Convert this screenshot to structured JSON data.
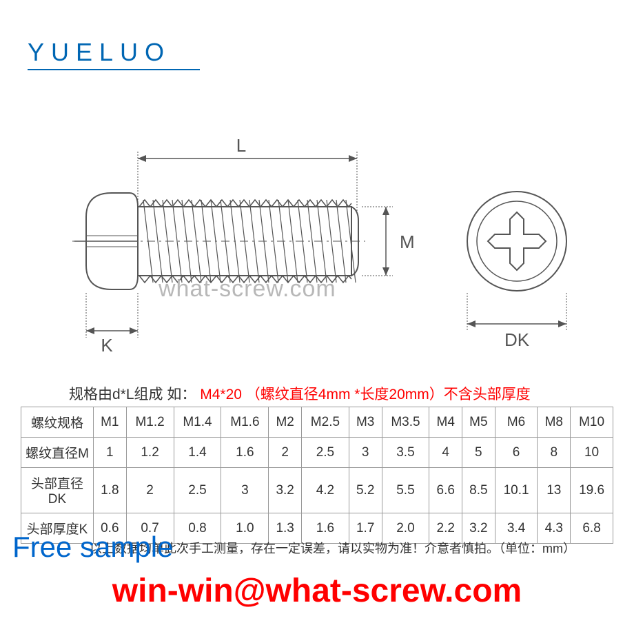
{
  "logo": "YUELUO",
  "watermark": "what-screw.com",
  "diagram": {
    "labels": {
      "L": "L",
      "M": "M",
      "K": "K",
      "DK": "DK"
    },
    "colors": {
      "line": "#555555",
      "thread": "#555555",
      "background": "#ffffff"
    }
  },
  "spec_line": {
    "part1": "规格由d*L组成",
    "gap": "   ",
    "part2": "如：",
    "red1": "M4*20",
    "gap2": "    ",
    "red2": "（螺纹直径4mm *长度20mm）不含头部厚度"
  },
  "table": {
    "rows": [
      [
        "螺纹规格",
        "M1",
        "M1.2",
        "M1.4",
        "M1.6",
        "M2",
        "M2.5",
        "M3",
        "M3.5",
        "M4",
        "M5",
        "M6",
        "M8",
        "M10"
      ],
      [
        "螺纹直径M",
        "1",
        "1.2",
        "1.4",
        "1.6",
        "2",
        "2.5",
        "3",
        "3.5",
        "4",
        "5",
        "6",
        "8",
        "10"
      ],
      [
        "头部直径DK",
        "1.8",
        "2",
        "2.5",
        "3",
        "3.2",
        "4.2",
        "5.2",
        "5.5",
        "6.6",
        "8.5",
        "10.1",
        "13",
        "19.6"
      ],
      [
        "头部厚度K",
        "0.6",
        "0.7",
        "0.8",
        "1.0",
        "1.3",
        "1.6",
        "1.7",
        "2.0",
        "2.2",
        "3.2",
        "3.4",
        "4.3",
        "6.8"
      ]
    ]
  },
  "footnote": "以上数据均单此次手工测量，存在一定误差，请以实物为准！介意者慎拍。（单位：mm）",
  "free_sample": "Free sample",
  "email": "win-win@what-screw.com",
  "colors": {
    "logo": "#0066b3",
    "red": "#ff0000",
    "blue_overlay": "#0066cc",
    "text": "#333333",
    "watermark": "#b8b8b8",
    "border": "#999999"
  }
}
